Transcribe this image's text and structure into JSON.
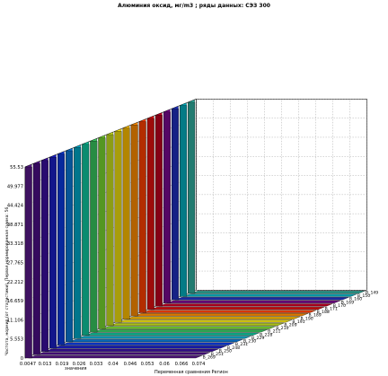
{
  "chart_data": {
    "type": "bar",
    "variant": "3d-waterfall",
    "title": "Алюминия оксид,  мг/m3 ; ряды данных: СЭЗ 300",
    "xlabel": "значения",
    "ylabel": "Частота, нормир.(от статистики). Первая нормированная сумма: 56",
    "zlabel": "Переменная сравнения Регион",
    "x_ticks": [
      "0.0047",
      "0.013",
      "0.019",
      "0.026",
      "0.033",
      "0.04",
      "0.046",
      "0.053",
      "0.06",
      "0.066",
      "0.074"
    ],
    "y_ticks": [
      "0",
      "5.553",
      "11.106",
      "16.659",
      "22.212",
      "27.765",
      "33.318",
      "38.871",
      "44.424",
      "49.977",
      "55.53"
    ],
    "ylim": [
      0,
      55.53
    ],
    "series_labels": [
      "B_149",
      "B_150",
      "B_160",
      "B_169",
      "B_170",
      "B_171",
      "B_188",
      "B_189",
      "B_190",
      "B_191",
      "B_209",
      "B_210",
      "B_211",
      "B_228",
      "B_229",
      "B_230",
      "B_231",
      "B_248",
      "B_250",
      "B_251",
      "B_269"
    ],
    "series_colors": [
      "#5a1a8c",
      "#4b0f86",
      "#3a0fa0",
      "#1a1fc8",
      "#0a3ae0",
      "#0a7ad8",
      "#00a8c8",
      "#10c8a0",
      "#38c860",
      "#78d830",
      "#c8e020",
      "#f0e010",
      "#ffc000",
      "#ff8c00",
      "#ff4000",
      "#e01010",
      "#c00020",
      "#7a0a90",
      "#1f30c0",
      "#06b0c0",
      "#30b0a0"
    ],
    "max_value_per_series": 55.53,
    "grid": "on",
    "projection": "oblique"
  }
}
